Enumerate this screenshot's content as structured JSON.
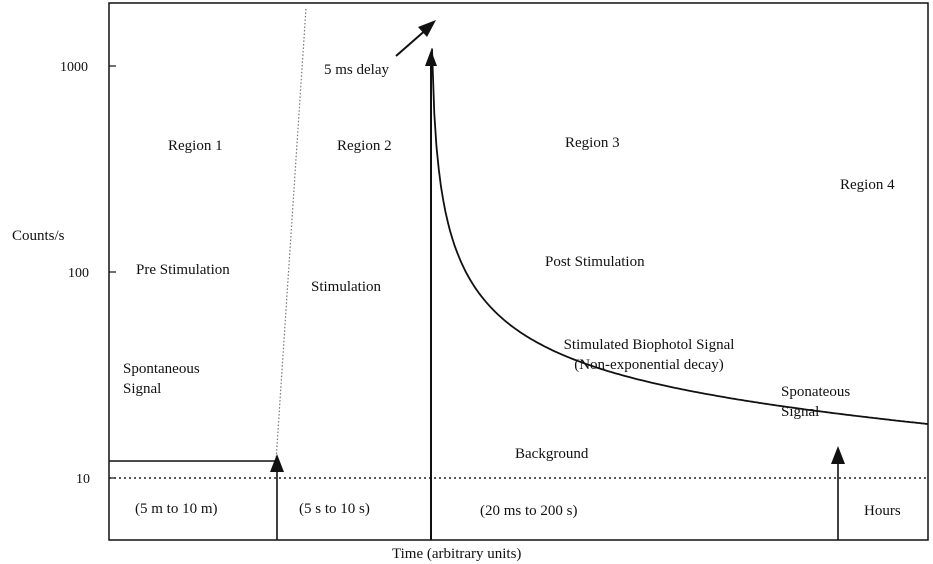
{
  "chart_data": {
    "type": "line",
    "title": "",
    "xlabel": "Time (arbitrary units)",
    "ylabel": "Counts/s",
    "y_scale": "log",
    "ylim": [
      5,
      1800
    ],
    "y_ticks": [
      {
        "value": 10,
        "label": "10"
      },
      {
        "value": 100,
        "label": "100"
      },
      {
        "value": 1000,
        "label": "1000"
      }
    ],
    "regions": [
      {
        "name": "Region 1",
        "phase": "Pre Stimulation",
        "note": "Spontaneous\nSignal",
        "duration": "(5 m to 10 m)"
      },
      {
        "name": "Region 2",
        "phase": "Stimulation",
        "note": "",
        "duration": "(5 s to 10 s)"
      },
      {
        "name": "Region 3",
        "phase": "Post Stimulation",
        "note": "Stimulated Biophotol Signal\n(Non-exponential decay)",
        "duration": "(20 ms to 200 s)"
      },
      {
        "name": "Region 4",
        "phase": "",
        "note": "Sponateous\nSignal",
        "duration": "Hours"
      }
    ],
    "annotations": {
      "delay": "5 ms delay",
      "background": "Background"
    },
    "background_level": 10,
    "spontaneous_level": 12,
    "peak_level": 1300
  }
}
